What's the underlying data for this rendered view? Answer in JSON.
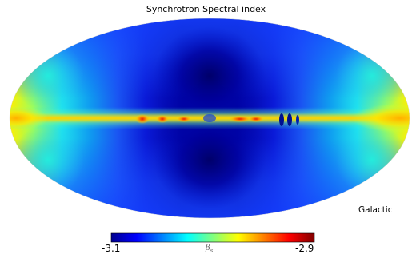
{
  "map": {
    "title": "Synchrotron Spectral index",
    "coordinate_system": "Galactic",
    "projection": "mollweide",
    "colormap": "jet"
  },
  "colorbar": {
    "min_label": "-3.1",
    "max_label": "-2.9",
    "unit_symbol": "β",
    "unit_subscript": "s",
    "min_value": -3.1,
    "max_value": -2.9
  }
}
